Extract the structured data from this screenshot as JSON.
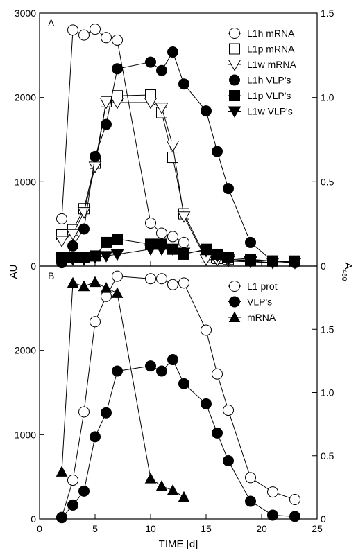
{
  "chart_data": [
    {
      "panel": "A",
      "type": "line",
      "xlabel": "TIME [d]",
      "ylabel_left": "AU",
      "ylabel_right": "A",
      "ylabel_right_sub": "450",
      "xlim": [
        0,
        25
      ],
      "ylim_left": [
        0,
        3000
      ],
      "ylim_right": [
        0,
        1.5
      ],
      "xticks": [
        0,
        5,
        10,
        15,
        20,
        25
      ],
      "yticks_left": [
        0,
        1000,
        2000,
        3000
      ],
      "yticks_right": [
        0,
        0.5,
        1.0,
        1.5
      ],
      "yticks_right_labels": [
        "0",
        "0.5",
        "1.0",
        "1.5"
      ],
      "grid": false,
      "legend_position": "top-right",
      "series": [
        {
          "name": "L1h mRNA",
          "marker": "circle-open",
          "axis": "left",
          "x": [
            2,
            3,
            4,
            5,
            6,
            7,
            10,
            11,
            12,
            13
          ],
          "y": [
            560,
            2800,
            2740,
            2810,
            2710,
            2680,
            510,
            390,
            350,
            280
          ]
        },
        {
          "name": "L1p mRNA",
          "marker": "square-open",
          "axis": "left",
          "x": [
            2,
            3,
            4,
            5,
            6,
            7,
            10,
            11,
            12,
            13,
            15,
            16,
            17,
            19,
            21,
            23
          ],
          "y": [
            370,
            430,
            680,
            1220,
            1950,
            2020,
            2030,
            1820,
            1290,
            620,
            100,
            90,
            80,
            70,
            60,
            50
          ]
        },
        {
          "name": "L1w mRNA",
          "marker": "triangle-down-open",
          "axis": "left",
          "x": [
            2,
            3,
            4,
            5,
            6,
            7,
            10,
            11,
            12,
            13,
            15,
            16,
            17,
            19,
            21,
            23
          ],
          "y": [
            300,
            380,
            640,
            1180,
            1940,
            1940,
            1940,
            1880,
            1430,
            590,
            80,
            70,
            60,
            50,
            40,
            40
          ]
        },
        {
          "name": "L1h VLP's",
          "marker": "circle-filled",
          "axis": "right",
          "x": [
            2,
            3,
            4,
            5,
            6,
            7,
            10,
            11,
            12,
            13,
            15,
            16,
            17,
            19,
            21,
            23
          ],
          "y": [
            0.02,
            0.12,
            0.22,
            0.65,
            0.84,
            1.17,
            1.21,
            1.16,
            1.27,
            1.08,
            0.92,
            0.68,
            0.46,
            0.14,
            0.03,
            0.02
          ]
        },
        {
          "name": "L1p VLP's",
          "marker": "square-filled",
          "axis": "right",
          "x": [
            2,
            3,
            4,
            5,
            6,
            7,
            10,
            11,
            12,
            13,
            15,
            16,
            17,
            19,
            21,
            23
          ],
          "y": [
            0.05,
            0.05,
            0.05,
            0.06,
            0.14,
            0.16,
            0.13,
            0.13,
            0.1,
            0.07,
            0.1,
            0.07,
            0.05,
            0.04,
            0.03,
            0.03
          ]
        },
        {
          "name": "L1w VLP's",
          "marker": "triangle-down-filled",
          "axis": "right",
          "x": [
            2,
            3,
            4,
            5,
            6,
            7,
            10,
            11,
            12,
            13,
            15,
            16,
            17,
            19,
            21,
            23
          ],
          "y": [
            0.04,
            0.04,
            0.04,
            0.05,
            0.06,
            0.07,
            0.1,
            0.1,
            0.1,
            0.08,
            0.09,
            0.06,
            0.04,
            0.03,
            0.02,
            0.02
          ]
        }
      ]
    },
    {
      "panel": "B",
      "type": "line",
      "xlabel": "TIME [d]",
      "ylabel_left": "AU",
      "ylabel_right": "A",
      "ylabel_right_sub": "450",
      "xlim": [
        0,
        25
      ],
      "ylim_left": [
        0,
        3000
      ],
      "ylim_right": [
        0,
        2.0
      ],
      "xticks": [
        0,
        5,
        10,
        15,
        20,
        25
      ],
      "yticks_left": [
        0,
        1000,
        2000
      ],
      "yticks_right": [
        0,
        0.5,
        1.0,
        1.5
      ],
      "yticks_right_labels": [
        "0",
        "0.5",
        "1.0",
        "1.5"
      ],
      "grid": false,
      "legend_position": "top-right",
      "series": [
        {
          "name": "L1 prot",
          "marker": "circle-open",
          "axis": "left",
          "x": [
            2,
            3,
            4,
            5,
            6,
            7,
            10,
            11,
            12,
            13,
            15,
            16,
            17,
            19,
            21,
            23
          ],
          "y": [
            20,
            460,
            1270,
            2340,
            2640,
            2880,
            2850,
            2850,
            2780,
            2800,
            2240,
            1720,
            1290,
            490,
            320,
            230
          ]
        },
        {
          "name": "VLP's",
          "marker": "circle-filled",
          "axis": "right",
          "x": [
            2,
            3,
            4,
            5,
            6,
            7,
            10,
            11,
            12,
            13,
            15,
            16,
            17,
            19,
            21,
            23
          ],
          "y": [
            0.01,
            0.11,
            0.22,
            0.65,
            0.84,
            1.17,
            1.21,
            1.17,
            1.26,
            1.07,
            0.91,
            0.68,
            0.46,
            0.14,
            0.03,
            0.02
          ]
        },
        {
          "name": "mRNA",
          "marker": "triangle-up-filled",
          "axis": "left",
          "x": [
            2,
            3,
            4,
            5,
            6,
            7,
            10,
            11,
            12,
            13
          ],
          "y": [
            560,
            2800,
            2760,
            2810,
            2740,
            2680,
            480,
            390,
            340,
            260
          ]
        }
      ]
    }
  ]
}
